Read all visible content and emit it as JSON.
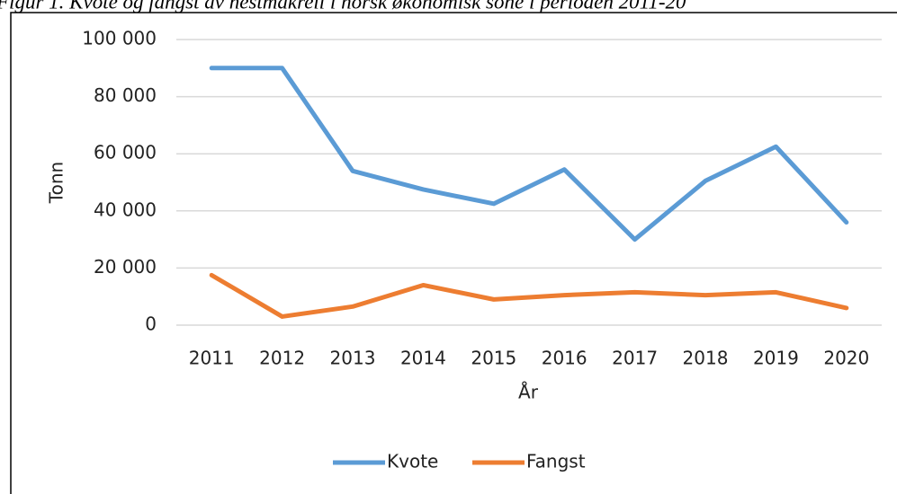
{
  "chart_data": {
    "type": "line",
    "title": "Figur 1. Kvote og fangst av hestmakrell i norsk økonomisk sone i perioden 2011-20",
    "x_label": "År",
    "y_label": "Tonn",
    "categories": [
      "2011",
      "2012",
      "2013",
      "2014",
      "2015",
      "2016",
      "2017",
      "2018",
      "2019",
      "2020"
    ],
    "series": [
      {
        "name": "Kvote",
        "color": "#5b9bd5",
        "values": [
          90000,
          90000,
          54000,
          47500,
          42500,
          54500,
          30000,
          50500,
          62500,
          36000
        ]
      },
      {
        "name": "Fangst",
        "color": "#ed7d31",
        "values": [
          17500,
          3000,
          6500,
          14000,
          9000,
          10500,
          11500,
          10500,
          11500,
          6000
        ]
      }
    ],
    "ylim": [
      0,
      100000
    ],
    "yticks": [
      0,
      {
        "value": 20000,
        "label": "20 000"
      },
      {
        "value": 40000,
        "label": "40 000"
      },
      {
        "value": 60000,
        "label": "60 000"
      },
      {
        "value": 80000,
        "label": "80 000"
      },
      {
        "value": 100000,
        "label": "100 000"
      }
    ],
    "grid": true,
    "legend": "bottom"
  }
}
